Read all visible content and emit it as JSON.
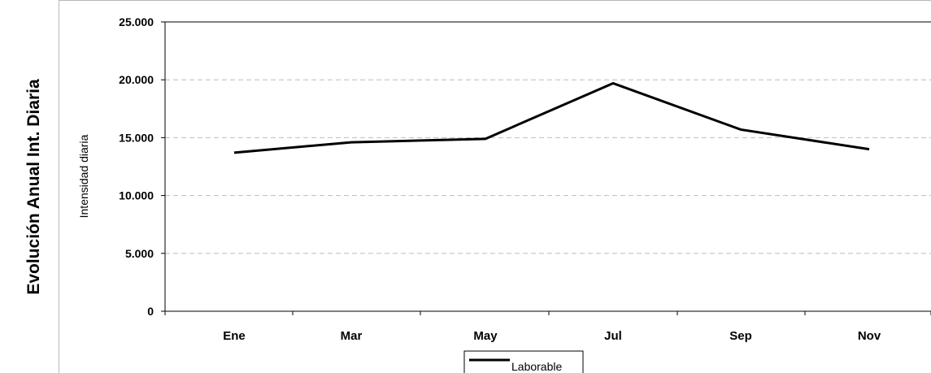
{
  "side_title": "Evolución Anual Int. Diaria",
  "chart_data": {
    "type": "line",
    "title": "",
    "xlabel": "",
    "ylabel": "Intensidad diaria",
    "categories": [
      "Ene",
      "Mar",
      "May",
      "Jul",
      "Sep",
      "Nov"
    ],
    "series": [
      {
        "name": "Laborable",
        "values": [
          13700,
          14600,
          14900,
          19700,
          15700,
          14000
        ],
        "color": "#000000"
      }
    ],
    "ylim": [
      0,
      25000
    ],
    "yticks": [
      0,
      5000,
      10000,
      15000,
      20000,
      25000
    ],
    "ytick_labels": [
      "0",
      "5.000",
      "10.000",
      "15.000",
      "20.000",
      "25.000"
    ],
    "grid": "horizontal dashed",
    "legend": "bottom-center"
  }
}
